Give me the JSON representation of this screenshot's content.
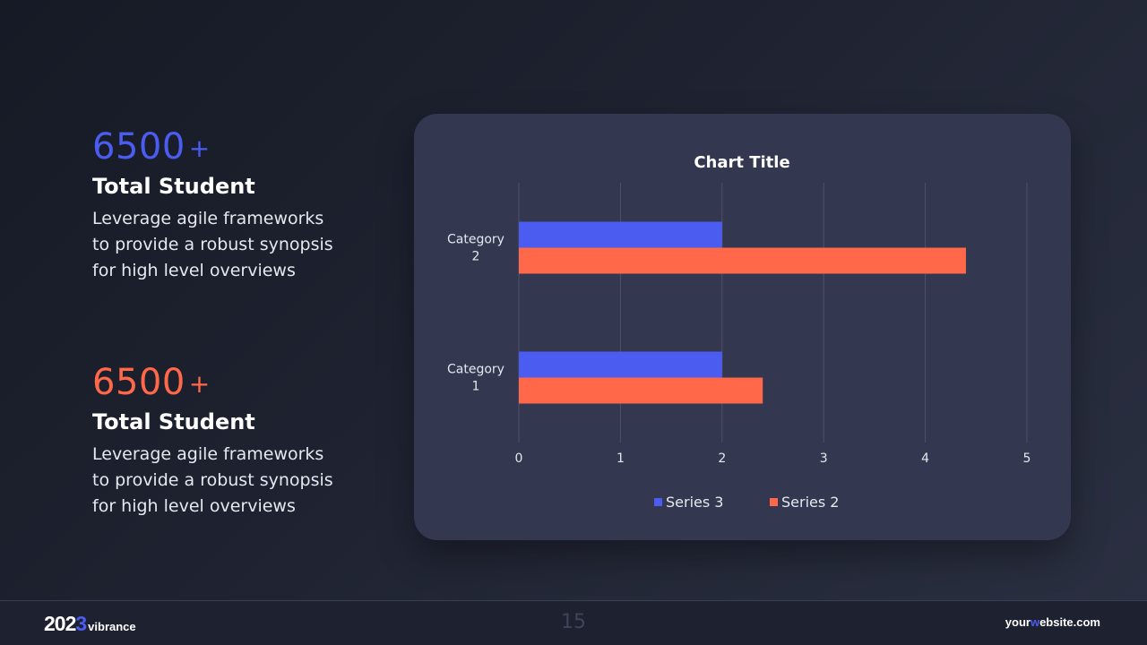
{
  "stats": [
    {
      "number": "6500",
      "suffix": "+",
      "heading": "Total Student",
      "lines": [
        "Leverage agile frameworks",
        "to provide a robust synopsis",
        "for high level overviews"
      ],
      "color": "#4b5cf0"
    },
    {
      "number": "6500",
      "suffix": "+",
      "heading": "Total Student",
      "lines": [
        "Leverage agile frameworks",
        "to provide a robust synopsis",
        "for high level overviews"
      ],
      "color": "#ff6849"
    }
  ],
  "chart_data": {
    "type": "bar",
    "orientation": "horizontal",
    "title": "Chart Title",
    "categories": [
      "Category 1",
      "Category 2"
    ],
    "category_label_lines": [
      [
        "Category",
        "1"
      ],
      [
        "Category",
        "2"
      ]
    ],
    "series": [
      {
        "name": "Series 3",
        "values": [
          2,
          2
        ],
        "color": "#4b5cf0"
      },
      {
        "name": "Series 2",
        "values": [
          2.4,
          4.4
        ],
        "color": "#ff6849"
      }
    ],
    "xlim": [
      0,
      5
    ],
    "xticks": [
      "0",
      "1",
      "2",
      "3",
      "4",
      "5"
    ],
    "grid": true,
    "legend": "bottom"
  },
  "footer": {
    "year_prefix": "202",
    "year_accent": "3",
    "brand": "vibrance",
    "page_number": "15",
    "website_prefix": "your",
    "website_accent": "w",
    "website_suffix": "ebsite.com"
  }
}
